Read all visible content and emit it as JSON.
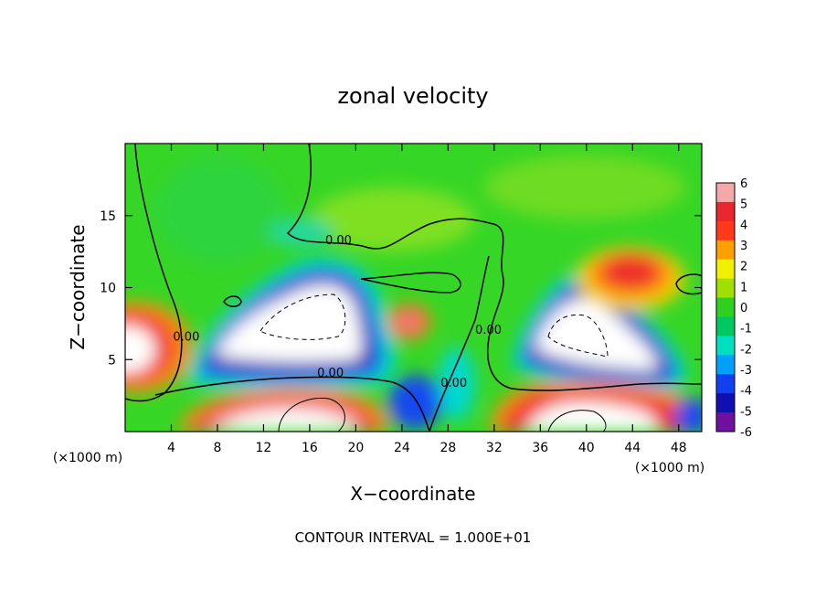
{
  "chart_data": {
    "type": "heatmap",
    "title": "zonal velocity",
    "xlabel": "X−coordinate",
    "ylabel": "Z−coordinate",
    "x_units_left": "(×1000 m)",
    "x_units_right": "(×1000 m)",
    "footer": "CONTOUR INTERVAL = 1.000E+01",
    "xlim": [
      0,
      50
    ],
    "ylim": [
      0,
      20
    ],
    "x_ticks": [
      4,
      8,
      12,
      16,
      20,
      24,
      28,
      32,
      36,
      40,
      44,
      48
    ],
    "y_ticks": [
      5,
      10,
      15
    ],
    "contour_labels": [
      {
        "text": "0.00",
        "x": 18.5,
        "y": 13.2
      },
      {
        "text": "0.00",
        "x": 17.8,
        "y": 4.0
      },
      {
        "text": "0.00",
        "x": 5.3,
        "y": 6.5
      },
      {
        "text": "0.00",
        "x": 28.5,
        "y": 3.3
      },
      {
        "text": "0.00",
        "x": 31.5,
        "y": 7.0
      }
    ],
    "colorbar": {
      "levels": [
        6,
        5,
        4,
        3,
        2,
        1,
        0,
        -1,
        -2,
        -3,
        -4,
        -5,
        -6
      ],
      "colors": [
        "#f4a8a8",
        "#e8282e",
        "#ff3a1a",
        "#ffa000",
        "#f0f000",
        "#a0e000",
        "#30d020",
        "#00c860",
        "#00e0c0",
        "#00a0ff",
        "#1040f0",
        "#1010b0",
        "#7010a0"
      ]
    },
    "features": [
      {
        "kind": "negative-core",
        "x": 17.5,
        "y": 7.5
      },
      {
        "kind": "negative-core",
        "x": 39.0,
        "y": 6.5
      },
      {
        "kind": "positive-core",
        "x": 15.0,
        "y": 1.0
      },
      {
        "kind": "positive-core",
        "x": 2.0,
        "y": 5.0
      },
      {
        "kind": "positive-core",
        "x": 44.5,
        "y": 10.5
      },
      {
        "kind": "positive-core",
        "x": 25.5,
        "y": 7.7
      }
    ]
  }
}
